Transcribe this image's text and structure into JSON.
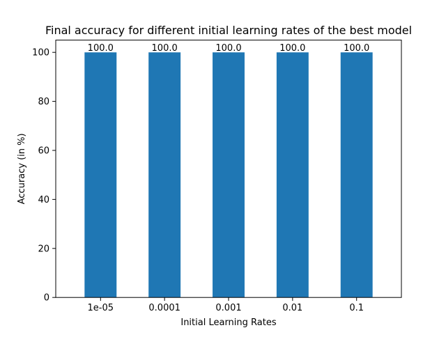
{
  "chart_data": {
    "type": "bar",
    "title": "Final accuracy for different initial learning rates of the best model",
    "xlabel": "Initial Learning Rates",
    "ylabel": "Accuracy (in %)",
    "categories": [
      "1e-05",
      "0.0001",
      "0.001",
      "0.01",
      "0.1"
    ],
    "values": [
      100.0,
      100.0,
      100.0,
      100.0,
      100.0
    ],
    "value_labels": [
      "100.0",
      "100.0",
      "100.0",
      "100.0",
      "100.0"
    ],
    "ylim": [
      0,
      105
    ],
    "yticks": [
      0,
      20,
      40,
      60,
      80,
      100
    ],
    "ytick_labels": [
      "0",
      "20",
      "40",
      "60",
      "80",
      "100"
    ],
    "grid": false,
    "bar_color": "#1f77b4"
  }
}
